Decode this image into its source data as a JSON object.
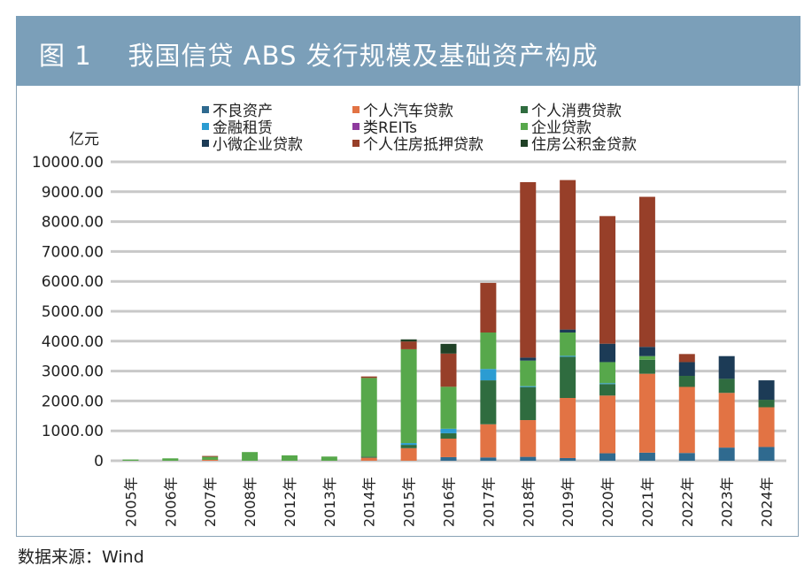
{
  "header": {
    "title": "图 1    我国信贷 ABS 发行规模及基础资产构成"
  },
  "source": "数据来源：Wind",
  "chart_data": {
    "type": "bar",
    "stacked": true,
    "title": "图 1    我国信贷 ABS 发行规模及基础资产构成",
    "ylabel": "亿元",
    "xlabel": "",
    "ylim": [
      0,
      10000
    ],
    "yticks": [
      "0",
      "1000.00",
      "2000.00",
      "3000.00",
      "4000.00",
      "5000.00",
      "6000.00",
      "7000.00",
      "8000.00",
      "9000.00",
      "10000.00"
    ],
    "grid": true,
    "legend_position": "top",
    "categories": [
      "2005年",
      "2006年",
      "2007年",
      "2008年",
      "2012年",
      "2013年",
      "2014年",
      "2015年",
      "2016年",
      "2017年",
      "2018年",
      "2019年",
      "2020年",
      "2021年",
      "2022年",
      "2023年",
      "2024年"
    ],
    "series": [
      {
        "name": "不良资产",
        "color": "#2f6a8f",
        "values": [
          0,
          0,
          0,
          0,
          0,
          0,
          0,
          0,
          120,
          110,
          130,
          90,
          250,
          270,
          260,
          440,
          460
        ]
      },
      {
        "name": "个人汽车贷款",
        "color": "#e27344",
        "values": [
          0,
          0,
          30,
          0,
          0,
          0,
          100,
          420,
          620,
          1110,
          1230,
          2010,
          1930,
          2640,
          2210,
          1830,
          1330
        ]
      },
      {
        "name": "个人消费贷款",
        "color": "#2f6c3f",
        "values": [
          0,
          0,
          0,
          0,
          0,
          0,
          40,
          110,
          180,
          1470,
          1105,
          1380,
          385,
          470,
          370,
          470,
          250
        ]
      },
      {
        "name": "金融租赁",
        "color": "#2b9cd2",
        "values": [
          0,
          0,
          0,
          0,
          0,
          0,
          0,
          60,
          150,
          380,
          30,
          30,
          30,
          0,
          0,
          0,
          0
        ]
      },
      {
        "name": "类REITs",
        "color": "#8e3a9e",
        "values": [
          0,
          0,
          0,
          0,
          0,
          0,
          0,
          0,
          0,
          0,
          0,
          0,
          0,
          0,
          0,
          0,
          0
        ]
      },
      {
        "name": "企业贷款",
        "color": "#57a84b",
        "values": [
          40,
          80,
          100,
          290,
          180,
          140,
          2630,
          3140,
          1405,
          1220,
          855,
          780,
          705,
          120,
          0,
          0,
          0
        ]
      },
      {
        "name": "小微企业贷款",
        "color": "#1c3b56",
        "values": [
          0,
          0,
          0,
          0,
          0,
          0,
          0,
          0,
          0,
          0,
          100,
          100,
          615,
          310,
          460,
          760,
          650
        ]
      },
      {
        "name": "个人住房抵押贷款",
        "color": "#973f29",
        "values": [
          0,
          0,
          30,
          0,
          0,
          0,
          50,
          260,
          1110,
          1660,
          5870,
          5000,
          4270,
          5020,
          270,
          0,
          0
        ]
      },
      {
        "name": "住房公积金贷款",
        "color": "#1f4126",
        "values": [
          0,
          0,
          0,
          0,
          0,
          0,
          0,
          70,
          325,
          0,
          0,
          0,
          0,
          0,
          0,
          0,
          0
        ]
      }
    ]
  }
}
